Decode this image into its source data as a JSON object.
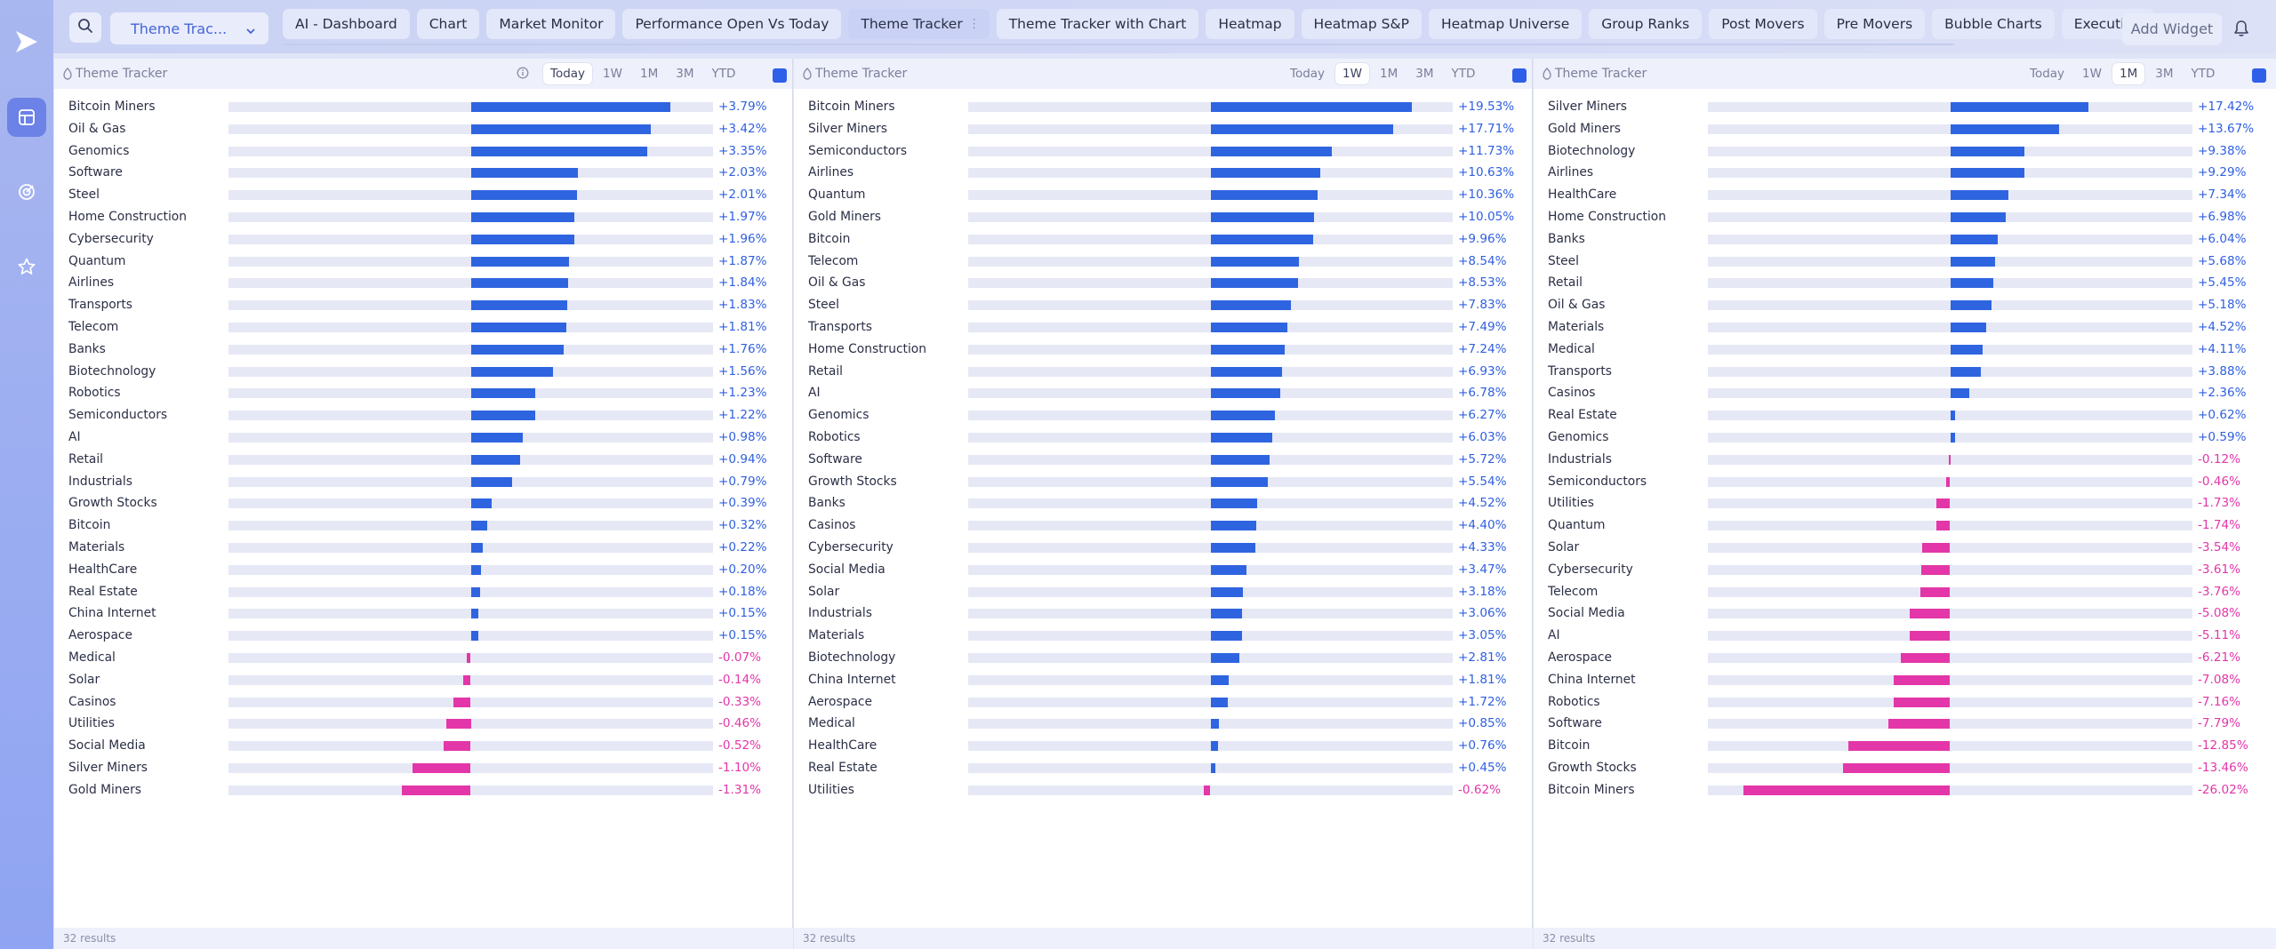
{
  "toolbar": {
    "layout_name": "Theme Trac...",
    "add_widget_label": "Add Widget"
  },
  "tabs": [
    {
      "label": "AI - Dashboard"
    },
    {
      "label": "Chart"
    },
    {
      "label": "Market Monitor"
    },
    {
      "label": "Performance Open Vs Today"
    },
    {
      "label": "Theme Tracker"
    },
    {
      "label": "Theme Tracker with Chart"
    },
    {
      "label": "Heatmap"
    },
    {
      "label": "Heatmap S&P"
    },
    {
      "label": "Heatmap Universe"
    },
    {
      "label": "Group Ranks"
    },
    {
      "label": "Post Movers"
    },
    {
      "label": "Pre Movers"
    },
    {
      "label": "Bubble Charts"
    },
    {
      "label": "Execution"
    }
  ],
  "active_tab": "Theme Tracker",
  "colors": {
    "positive": "#2f64e0",
    "negative": "#e336a9",
    "accent": "#2e5fe8"
  },
  "panels": [
    {
      "title": "Theme Tracker",
      "ranges": [
        "Today",
        "1W",
        "1M",
        "3M",
        "YTD"
      ],
      "active_range": "Today",
      "footer": "32 results",
      "max_abs": 4.6,
      "rows": [
        {
          "name": "Bitcoin Miners",
          "value": 3.79,
          "label": "+3.79%"
        },
        {
          "name": "Oil & Gas",
          "value": 3.42,
          "label": "+3.42%"
        },
        {
          "name": "Genomics",
          "value": 3.35,
          "label": "+3.35%"
        },
        {
          "name": "Software",
          "value": 2.03,
          "label": "+2.03%"
        },
        {
          "name": "Steel",
          "value": 2.01,
          "label": "+2.01%"
        },
        {
          "name": "Home Construction",
          "value": 1.97,
          "label": "+1.97%"
        },
        {
          "name": "Cybersecurity",
          "value": 1.96,
          "label": "+1.96%"
        },
        {
          "name": "Quantum",
          "value": 1.87,
          "label": "+1.87%"
        },
        {
          "name": "Airlines",
          "value": 1.84,
          "label": "+1.84%"
        },
        {
          "name": "Transports",
          "value": 1.83,
          "label": "+1.83%"
        },
        {
          "name": "Telecom",
          "value": 1.81,
          "label": "+1.81%"
        },
        {
          "name": "Banks",
          "value": 1.76,
          "label": "+1.76%"
        },
        {
          "name": "Biotechnology",
          "value": 1.56,
          "label": "+1.56%"
        },
        {
          "name": "Robotics",
          "value": 1.23,
          "label": "+1.23%"
        },
        {
          "name": "Semiconductors",
          "value": 1.22,
          "label": "+1.22%"
        },
        {
          "name": "AI",
          "value": 0.98,
          "label": "+0.98%"
        },
        {
          "name": "Retail",
          "value": 0.94,
          "label": "+0.94%"
        },
        {
          "name": "Industrials",
          "value": 0.79,
          "label": "+0.79%"
        },
        {
          "name": "Growth Stocks",
          "value": 0.39,
          "label": "+0.39%"
        },
        {
          "name": "Bitcoin",
          "value": 0.32,
          "label": "+0.32%"
        },
        {
          "name": "Materials",
          "value": 0.22,
          "label": "+0.22%"
        },
        {
          "name": "HealthCare",
          "value": 0.2,
          "label": "+0.20%"
        },
        {
          "name": "Real Estate",
          "value": 0.18,
          "label": "+0.18%"
        },
        {
          "name": "China Internet",
          "value": 0.15,
          "label": "+0.15%"
        },
        {
          "name": "Aerospace",
          "value": 0.15,
          "label": "+0.15%"
        },
        {
          "name": "Medical",
          "value": -0.07,
          "label": "-0.07%"
        },
        {
          "name": "Solar",
          "value": -0.14,
          "label": "-0.14%"
        },
        {
          "name": "Casinos",
          "value": -0.33,
          "label": "-0.33%"
        },
        {
          "name": "Utilities",
          "value": -0.46,
          "label": "-0.46%"
        },
        {
          "name": "Social Media",
          "value": -0.52,
          "label": "-0.52%"
        },
        {
          "name": "Silver Miners",
          "value": -1.1,
          "label": "-1.10%"
        },
        {
          "name": "Gold Miners",
          "value": -1.31,
          "label": "-1.31%"
        }
      ]
    },
    {
      "title": "Theme Tracker",
      "ranges": [
        "Today",
        "1W",
        "1M",
        "3M",
        "YTD"
      ],
      "active_range": "1W",
      "footer": "32 results",
      "max_abs": 23.5,
      "rows": [
        {
          "name": "Bitcoin Miners",
          "value": 19.53,
          "label": "+19.53%"
        },
        {
          "name": "Silver Miners",
          "value": 17.71,
          "label": "+17.71%"
        },
        {
          "name": "Semiconductors",
          "value": 11.73,
          "label": "+11.73%"
        },
        {
          "name": "Airlines",
          "value": 10.63,
          "label": "+10.63%"
        },
        {
          "name": "Quantum",
          "value": 10.36,
          "label": "+10.36%"
        },
        {
          "name": "Gold Miners",
          "value": 10.05,
          "label": "+10.05%"
        },
        {
          "name": "Bitcoin",
          "value": 9.96,
          "label": "+9.96%"
        },
        {
          "name": "Telecom",
          "value": 8.54,
          "label": "+8.54%"
        },
        {
          "name": "Oil & Gas",
          "value": 8.53,
          "label": "+8.53%"
        },
        {
          "name": "Steel",
          "value": 7.83,
          "label": "+7.83%"
        },
        {
          "name": "Transports",
          "value": 7.49,
          "label": "+7.49%"
        },
        {
          "name": "Home Construction",
          "value": 7.24,
          "label": "+7.24%"
        },
        {
          "name": "Retail",
          "value": 6.93,
          "label": "+6.93%"
        },
        {
          "name": "AI",
          "value": 6.78,
          "label": "+6.78%"
        },
        {
          "name": "Genomics",
          "value": 6.27,
          "label": "+6.27%"
        },
        {
          "name": "Robotics",
          "value": 6.03,
          "label": "+6.03%"
        },
        {
          "name": "Software",
          "value": 5.72,
          "label": "+5.72%"
        },
        {
          "name": "Growth Stocks",
          "value": 5.54,
          "label": "+5.54%"
        },
        {
          "name": "Banks",
          "value": 4.52,
          "label": "+4.52%"
        },
        {
          "name": "Casinos",
          "value": 4.4,
          "label": "+4.40%"
        },
        {
          "name": "Cybersecurity",
          "value": 4.33,
          "label": "+4.33%"
        },
        {
          "name": "Social Media",
          "value": 3.47,
          "label": "+3.47%"
        },
        {
          "name": "Solar",
          "value": 3.18,
          "label": "+3.18%"
        },
        {
          "name": "Industrials",
          "value": 3.06,
          "label": "+3.06%"
        },
        {
          "name": "Materials",
          "value": 3.05,
          "label": "+3.05%"
        },
        {
          "name": "Biotechnology",
          "value": 2.81,
          "label": "+2.81%"
        },
        {
          "name": "China Internet",
          "value": 1.81,
          "label": "+1.81%"
        },
        {
          "name": "Aerospace",
          "value": 1.72,
          "label": "+1.72%"
        },
        {
          "name": "Medical",
          "value": 0.85,
          "label": "+0.85%"
        },
        {
          "name": "HealthCare",
          "value": 0.76,
          "label": "+0.76%"
        },
        {
          "name": "Real Estate",
          "value": 0.45,
          "label": "+0.45%"
        },
        {
          "name": "Utilities",
          "value": -0.62,
          "label": "-0.62%"
        }
      ]
    },
    {
      "title": "Theme Tracker",
      "ranges": [
        "Today",
        "1W",
        "1M",
        "3M",
        "YTD"
      ],
      "active_range": "1M",
      "footer": "32 results",
      "max_abs": 30.5,
      "rows": [
        {
          "name": "Silver Miners",
          "value": 17.42,
          "label": "+17.42%"
        },
        {
          "name": "Gold Miners",
          "value": 13.67,
          "label": "+13.67%"
        },
        {
          "name": "Biotechnology",
          "value": 9.38,
          "label": "+9.38%"
        },
        {
          "name": "Airlines",
          "value": 9.29,
          "label": "+9.29%"
        },
        {
          "name": "HealthCare",
          "value": 7.34,
          "label": "+7.34%"
        },
        {
          "name": "Home Construction",
          "value": 6.98,
          "label": "+6.98%"
        },
        {
          "name": "Banks",
          "value": 6.04,
          "label": "+6.04%"
        },
        {
          "name": "Steel",
          "value": 5.68,
          "label": "+5.68%"
        },
        {
          "name": "Retail",
          "value": 5.45,
          "label": "+5.45%"
        },
        {
          "name": "Oil & Gas",
          "value": 5.18,
          "label": "+5.18%"
        },
        {
          "name": "Materials",
          "value": 4.52,
          "label": "+4.52%"
        },
        {
          "name": "Medical",
          "value": 4.11,
          "label": "+4.11%"
        },
        {
          "name": "Transports",
          "value": 3.88,
          "label": "+3.88%"
        },
        {
          "name": "Casinos",
          "value": 2.36,
          "label": "+2.36%"
        },
        {
          "name": "Real Estate",
          "value": 0.62,
          "label": "+0.62%"
        },
        {
          "name": "Genomics",
          "value": 0.59,
          "label": "+0.59%"
        },
        {
          "name": "Industrials",
          "value": -0.12,
          "label": "-0.12%"
        },
        {
          "name": "Semiconductors",
          "value": -0.46,
          "label": "-0.46%"
        },
        {
          "name": "Utilities",
          "value": -1.73,
          "label": "-1.73%"
        },
        {
          "name": "Quantum",
          "value": -1.74,
          "label": "-1.74%"
        },
        {
          "name": "Solar",
          "value": -3.54,
          "label": "-3.54%"
        },
        {
          "name": "Cybersecurity",
          "value": -3.61,
          "label": "-3.61%"
        },
        {
          "name": "Telecom",
          "value": -3.76,
          "label": "-3.76%"
        },
        {
          "name": "Social Media",
          "value": -5.08,
          "label": "-5.08%"
        },
        {
          "name": "AI",
          "value": -5.11,
          "label": "-5.11%"
        },
        {
          "name": "Aerospace",
          "value": -6.21,
          "label": "-6.21%"
        },
        {
          "name": "China Internet",
          "value": -7.08,
          "label": "-7.08%"
        },
        {
          "name": "Robotics",
          "value": -7.16,
          "label": "-7.16%"
        },
        {
          "name": "Software",
          "value": -7.79,
          "label": "-7.79%"
        },
        {
          "name": "Bitcoin",
          "value": -12.85,
          "label": "-12.85%"
        },
        {
          "name": "Growth Stocks",
          "value": -13.46,
          "label": "-13.46%"
        },
        {
          "name": "Bitcoin Miners",
          "value": -26.02,
          "label": "-26.02%"
        }
      ]
    }
  ]
}
